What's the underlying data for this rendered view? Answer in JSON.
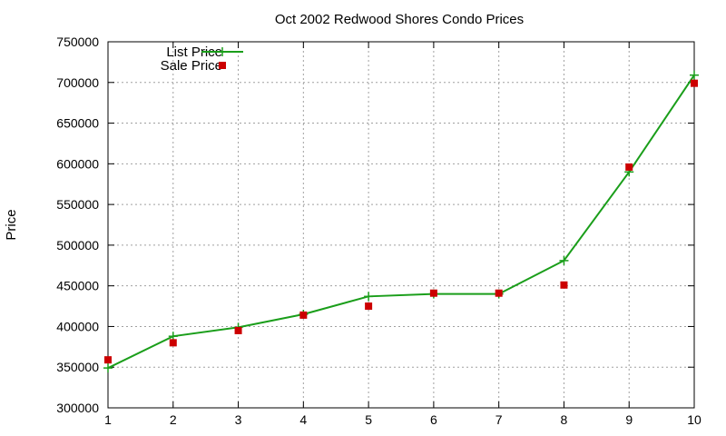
{
  "chart_data": {
    "type": "line",
    "title": "Oct 2002 Redwood Shores Condo Prices",
    "xlabel": "",
    "ylabel": "Price",
    "x": [
      1,
      2,
      3,
      4,
      5,
      6,
      7,
      8,
      9,
      10
    ],
    "xlim": [
      1,
      10
    ],
    "ylim": [
      300000,
      750000
    ],
    "xticks": [
      "1",
      "2",
      "3",
      "4",
      "5",
      "6",
      "7",
      "8",
      "9",
      "10"
    ],
    "yticks": [
      "300000",
      "350000",
      "400000",
      "450000",
      "500000",
      "550000",
      "600000",
      "650000",
      "700000",
      "750000"
    ],
    "grid": true,
    "legend_position": "top-left",
    "series": [
      {
        "name": "List Price",
        "style": "linespoints",
        "marker": "plus",
        "color": "#1a9e1a",
        "values": [
          349000,
          388000,
          399000,
          415000,
          437000,
          440000,
          440000,
          481000,
          590000,
          709000
        ]
      },
      {
        "name": "Sale Price",
        "style": "points",
        "marker": "square",
        "color": "#cc0000",
        "values": [
          359000,
          380000,
          395000,
          414000,
          425000,
          441000,
          441000,
          451000,
          596000,
          699000
        ]
      }
    ]
  }
}
